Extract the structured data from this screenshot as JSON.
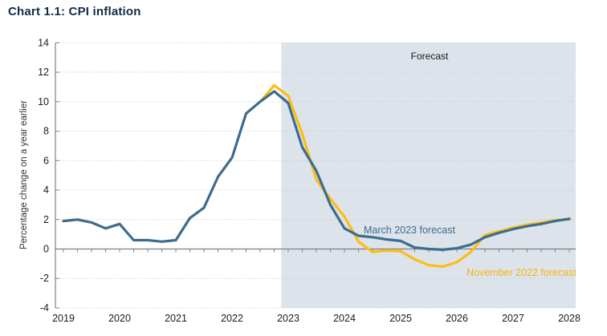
{
  "title": "Chart 1.1: CPI inflation",
  "colors": {
    "march_line": "#3D6C8E",
    "november_line": "#FDBE12",
    "forecast_shade": "#DCE3EB",
    "gridline": "#CBCBCB",
    "axis": "#808080",
    "tick_text": "#1a1a1a",
    "title_text": "#0f2b46"
  },
  "annotations": {
    "forecast_region_label": "Forecast",
    "march_series_label": "March 2023 forecast",
    "november_series_label": "November 2022 forecast"
  },
  "axes": {
    "y_title": "Percentage change on a year earlier",
    "y_ticks": [
      14,
      12,
      10,
      8,
      6,
      4,
      2,
      0,
      -2,
      -4
    ],
    "x_ticks": [
      2019,
      2020,
      2021,
      2022,
      2023,
      2024,
      2025,
      2026,
      2027,
      2028
    ]
  },
  "chart_data": {
    "type": "line",
    "title": "Chart 1.1: CPI inflation",
    "xlabel": "",
    "ylabel": "Percentage change on a year earlier",
    "ylim": [
      -4,
      14
    ],
    "ytick_step": 2,
    "xlim_years": [
      2018.85,
      2028.11
    ],
    "grid": "horizontal-dotted",
    "forecast_region": {
      "label": "Forecast",
      "start_year": 2022.875,
      "end_year": 2028.11
    },
    "legend_position": "inline-labels",
    "series": [
      {
        "name": "November 2022 forecast",
        "color": "#FDBE12",
        "x": [
          2022.5,
          2022.75,
          2023.0,
          2023.25,
          2023.5,
          2023.75,
          2024.0,
          2024.25,
          2024.5,
          2024.75,
          2025.0,
          2025.25,
          2025.5,
          2025.75,
          2026.0,
          2026.25,
          2026.5,
          2026.75,
          2027.0,
          2027.25,
          2027.5,
          2027.75,
          2028.0
        ],
        "values": [
          10.0,
          11.1,
          10.4,
          7.8,
          4.7,
          3.4,
          2.2,
          0.5,
          -0.2,
          -0.1,
          -0.15,
          -0.7,
          -1.1,
          -1.2,
          -0.9,
          -0.2,
          0.95,
          1.2,
          1.45,
          1.65,
          1.8,
          1.95,
          2.0
        ]
      },
      {
        "name": "March 2023 forecast",
        "color": "#3D6C8E",
        "x": [
          2019.0,
          2019.25,
          2019.5,
          2019.75,
          2020.0,
          2020.25,
          2020.5,
          2020.75,
          2021.0,
          2021.25,
          2021.5,
          2021.75,
          2022.0,
          2022.25,
          2022.5,
          2022.75,
          2023.0,
          2023.25,
          2023.5,
          2023.75,
          2024.0,
          2024.25,
          2024.5,
          2024.75,
          2025.0,
          2025.25,
          2025.5,
          2025.75,
          2026.0,
          2026.25,
          2026.5,
          2026.75,
          2027.0,
          2027.25,
          2027.5,
          2027.75,
          2028.0
        ],
        "values": [
          1.9,
          2.0,
          1.8,
          1.4,
          1.7,
          0.6,
          0.6,
          0.5,
          0.6,
          2.1,
          2.8,
          4.9,
          6.2,
          9.2,
          10.0,
          10.7,
          9.9,
          6.9,
          5.3,
          3.0,
          1.4,
          0.9,
          0.8,
          0.65,
          0.55,
          0.1,
          0.0,
          -0.05,
          0.05,
          0.3,
          0.8,
          1.1,
          1.35,
          1.55,
          1.7,
          1.9,
          2.05
        ]
      }
    ]
  }
}
